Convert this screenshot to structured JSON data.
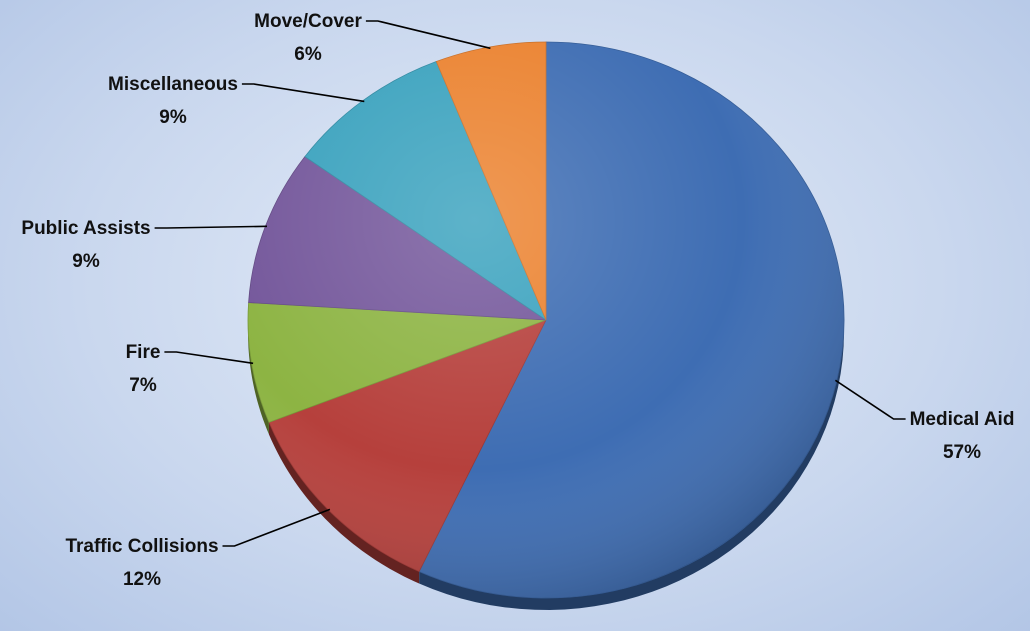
{
  "chart_data": {
    "type": "pie",
    "slices": [
      {
        "label": "Medical Aid",
        "pct_label": "57%",
        "value": 57,
        "color": "#3E6DB3"
      },
      {
        "label": "Traffic Collisions",
        "pct_label": "12%",
        "value": 12,
        "color": "#B6403C"
      },
      {
        "label": "Fire",
        "pct_label": "7%",
        "value": 7,
        "color": "#8DB443"
      },
      {
        "label": "Public Assists",
        "pct_label": "9%",
        "value": 9,
        "color": "#74579B"
      },
      {
        "label": "Miscellaneous",
        "pct_label": "9%",
        "value": 9,
        "color": "#3AA2BE"
      },
      {
        "label": "Move/Cover",
        "pct_label": "6%",
        "value": 6,
        "color": "#EB822F"
      }
    ],
    "start": "12 o'clock",
    "direction": "clockwise",
    "style": "3D",
    "legend": "none (slice labels with leader lines)"
  }
}
